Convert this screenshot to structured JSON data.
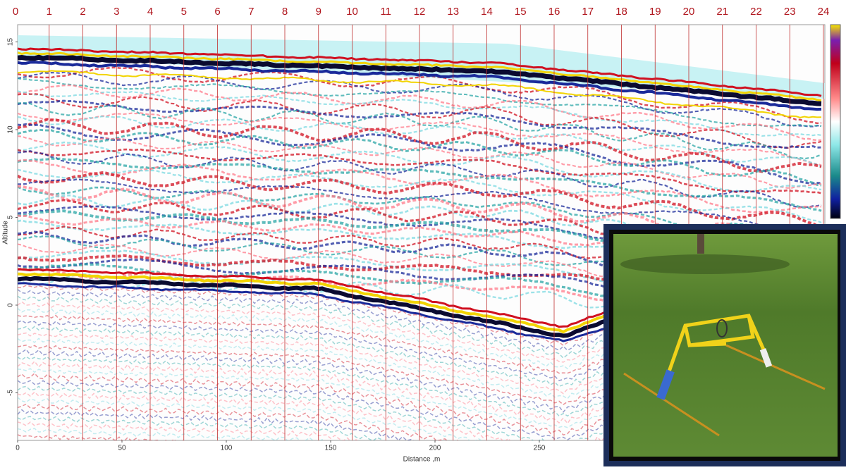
{
  "top_markers": [
    0,
    1,
    2,
    3,
    4,
    5,
    6,
    7,
    8,
    9,
    10,
    11,
    12,
    13,
    14,
    15,
    16,
    17,
    18,
    19,
    20,
    21,
    22,
    23,
    24
  ],
  "y_axis": {
    "label": "Altitude",
    "ticks": [
      15,
      10,
      5,
      0,
      -5
    ]
  },
  "x_axis": {
    "label": "Distance ,m",
    "ticks": [
      0,
      50,
      100,
      150,
      200,
      250
    ]
  }
}
